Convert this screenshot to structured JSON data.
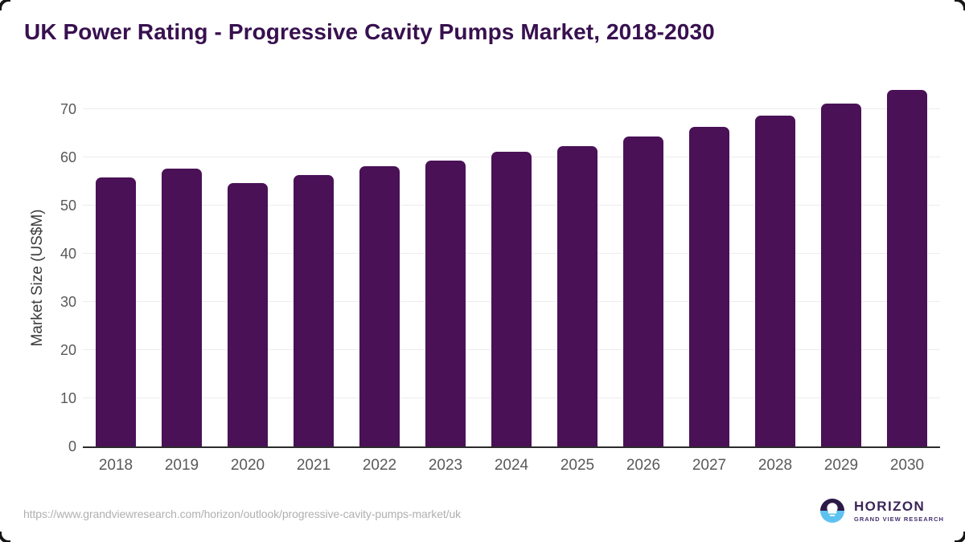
{
  "header": {
    "title": "UK Power Rating - Progressive Cavity Pumps Market, 2018-2030"
  },
  "chart_data": {
    "type": "bar",
    "title": "UK Power Rating - Progressive Cavity Pumps Market, 2018-2030",
    "categories": [
      "2018",
      "2019",
      "2020",
      "2021",
      "2022",
      "2023",
      "2024",
      "2025",
      "2026",
      "2027",
      "2028",
      "2029",
      "2030"
    ],
    "values": [
      55.9,
      57.7,
      54.7,
      56.3,
      58.2,
      59.4,
      61.2,
      62.4,
      64.3,
      66.3,
      68.7,
      71.2,
      74.0
    ],
    "xlabel": "",
    "ylabel": "Market Size (US$M)",
    "ylim": [
      0,
      75
    ],
    "yticks": [
      0,
      10,
      20,
      30,
      40,
      50,
      60,
      70
    ],
    "grid": true,
    "legend": "none",
    "bar_color": "#4a1157"
  },
  "footer": {
    "source_url": "https://www.grandviewresearch.com/horizon/outlook/progressive-cavity-pumps-market/uk",
    "logo": {
      "brand": "HORIZON",
      "sub_brand": "GRAND VIEW RESEARCH"
    }
  },
  "colors": {
    "bar_color": "#4a1157",
    "title_color": "#38104f",
    "gridline_color": "#ececec",
    "axis_color": "#2b2b2b",
    "tick_color": "#595959",
    "url_color": "#b0b0b0",
    "logo_navy": "#2b1a47",
    "logo_blue": "#5ec2f0",
    "logo_purple": "#3b2559"
  }
}
